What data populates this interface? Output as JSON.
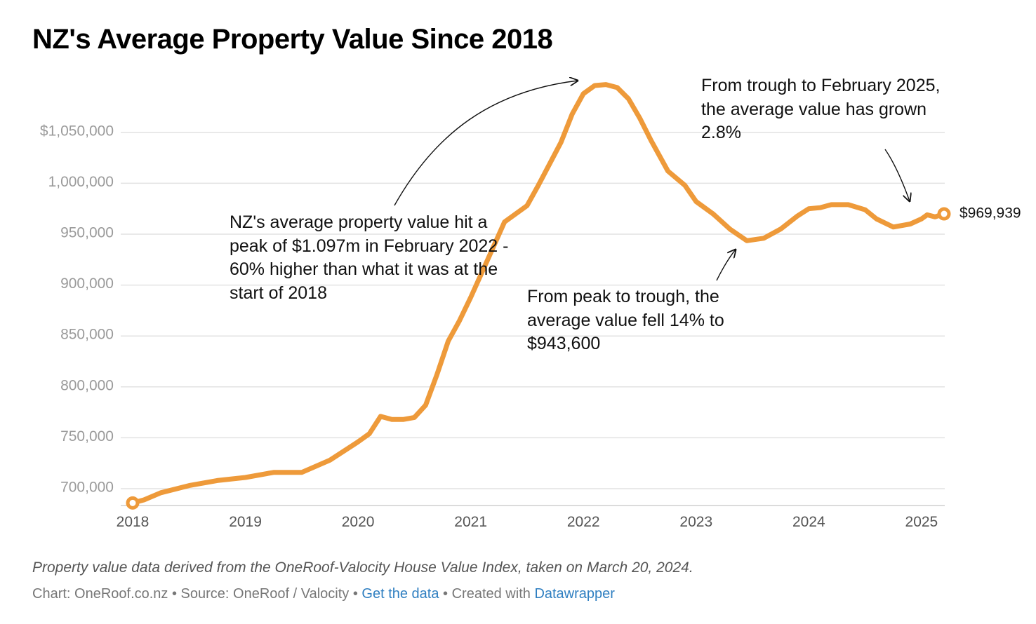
{
  "title": "NZ's Average Property Value Since 2018",
  "chart_data": {
    "type": "line",
    "title": "NZ's Average Property Value Since 2018",
    "xlabel": "",
    "ylabel": "",
    "xlim": [
      2018,
      2025.2
    ],
    "ylim": [
      690000,
      1100000
    ],
    "y_ticks": [
      700000,
      750000,
      800000,
      850000,
      900000,
      950000,
      1000000,
      1050000
    ],
    "y_tick_labels": [
      "700,000",
      "750,000",
      "800,000",
      "850,000",
      "900,000",
      "950,000",
      "1,000,000",
      "$1,050,000"
    ],
    "x_ticks": [
      2018,
      2019,
      2020,
      2021,
      2022,
      2023,
      2024,
      2025
    ],
    "x_tick_labels": [
      "2018",
      "2019",
      "2020",
      "2021",
      "2022",
      "2023",
      "2024",
      "2025"
    ],
    "grid": true,
    "color": "#ee9a3a",
    "series": [
      {
        "name": "Average property value",
        "x": [
          2018.0,
          2018.1,
          2018.25,
          2018.5,
          2018.75,
          2019.0,
          2019.25,
          2019.5,
          2019.75,
          2020.0,
          2020.1,
          2020.2,
          2020.3,
          2020.4,
          2020.5,
          2020.6,
          2020.7,
          2020.8,
          2020.9,
          2021.0,
          2021.15,
          2021.3,
          2021.5,
          2021.6,
          2021.8,
          2021.9,
          2022.0,
          2022.1,
          2022.2,
          2022.3,
          2022.4,
          2022.5,
          2022.6,
          2022.75,
          2022.9,
          2023.0,
          2023.15,
          2023.3,
          2023.45,
          2023.6,
          2023.75,
          2023.9,
          2024.0,
          2024.1,
          2024.2,
          2024.35,
          2024.5,
          2024.6,
          2024.75,
          2024.9,
          2025.0,
          2025.05,
          2025.12,
          2025.2
        ],
        "values": [
          686000,
          689000,
          696000,
          703000,
          708000,
          711000,
          716000,
          716000,
          728000,
          746000,
          754000,
          771000,
          768000,
          768000,
          770000,
          782000,
          812000,
          845000,
          865000,
          888000,
          925000,
          962000,
          978000,
          998000,
          1040000,
          1068000,
          1088000,
          1096000,
          1097000,
          1094000,
          1083000,
          1064000,
          1042000,
          1012000,
          998000,
          982000,
          970000,
          955000,
          943600,
          946000,
          955000,
          968000,
          975000,
          976000,
          979000,
          979000,
          974000,
          965000,
          957000,
          960000,
          965000,
          969000,
          967000,
          969939
        ]
      }
    ],
    "end_label": "$969,939",
    "annotations": [
      "NZ's average property value hit a peak of $1.097m in February 2022 - 60% higher than what it was at the start of 2018",
      "From peak to trough, the average value fell 14% to $943,600",
      "From trough to February 2025, the average value has grown 2.8%"
    ]
  },
  "footer": {
    "note": "Property value data derived from the OneRoof-Valocity House Value Index, taken on March 20, 2024.",
    "credit_prefix": "Chart: OneRoof.co.nz • Source: OneRoof / Valocity • ",
    "get_data": "Get the data",
    "created_prefix": " • Created with ",
    "datawrapper": "Datawrapper"
  }
}
